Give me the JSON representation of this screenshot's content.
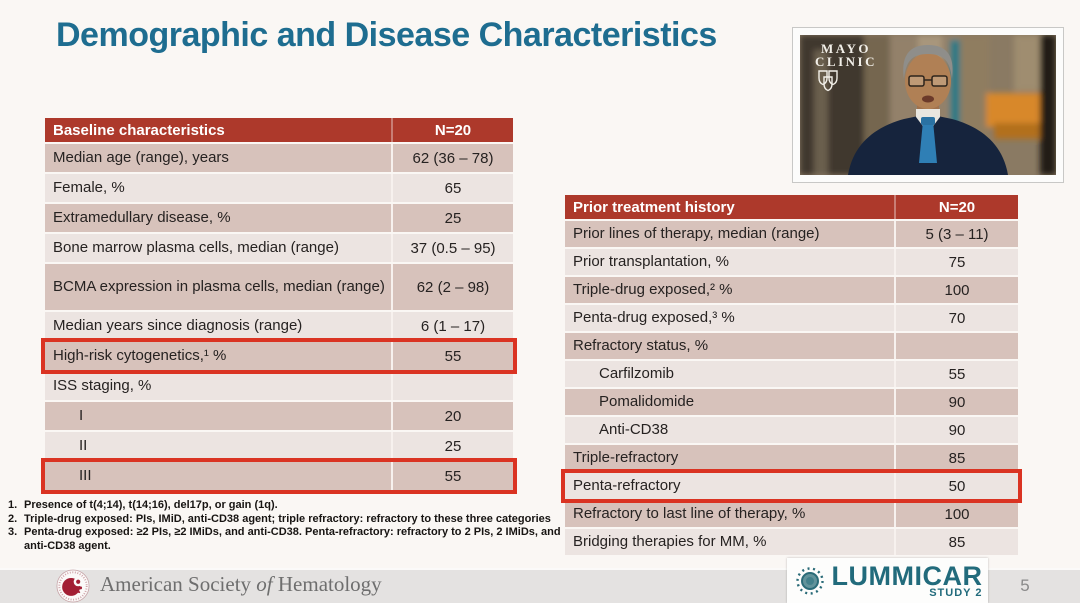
{
  "title": "Demographic and Disease Characteristics",
  "video": {
    "clinic_line1": "MAYO",
    "clinic_line2": "CLINIC"
  },
  "baseline_table": {
    "header": {
      "label": "Baseline characteristics",
      "value": "N=20"
    },
    "rows": [
      {
        "label": "Median age (range), years",
        "value": "62 (36 – 78)",
        "shade": "dark"
      },
      {
        "label": "Female, %",
        "value": "65",
        "shade": "light"
      },
      {
        "label": "Extramedullary disease, %",
        "value": "25",
        "shade": "dark"
      },
      {
        "label": "Bone marrow plasma cells, median (range)",
        "value": "37 (0.5 – 95)",
        "shade": "light"
      },
      {
        "label": "BCMA expression in plasma cells, median (range)",
        "value": "62 (2 – 98)",
        "shade": "dark",
        "tall": true
      },
      {
        "label": "Median years since diagnosis (range)",
        "value": "6 (1 – 17)",
        "shade": "light"
      },
      {
        "label": "High-risk cytogenetics,¹ %",
        "value": "55",
        "shade": "dark",
        "highlight": true
      },
      {
        "label": "ISS staging, %",
        "value": "",
        "shade": "light"
      },
      {
        "label": "I",
        "value": "20",
        "shade": "dark",
        "indent": true
      },
      {
        "label": "II",
        "value": "25",
        "shade": "light",
        "indent": true
      },
      {
        "label": "III",
        "value": "55",
        "shade": "dark",
        "indent": true,
        "highlight": true
      }
    ]
  },
  "treatment_table": {
    "header": {
      "label": "Prior treatment history",
      "value": "N=20"
    },
    "rows": [
      {
        "label": "Prior lines of therapy, median (range)",
        "value": "5 (3 – 11)",
        "shade": "dark"
      },
      {
        "label": "Prior transplantation, %",
        "value": "75",
        "shade": "light"
      },
      {
        "label": "Triple-drug exposed,² %",
        "value": "100",
        "shade": "dark"
      },
      {
        "label": "Penta-drug exposed,³ %",
        "value": "70",
        "shade": "light"
      },
      {
        "label": "Refractory status, %",
        "value": "",
        "shade": "dark"
      },
      {
        "label": "Carfilzomib",
        "value": "55",
        "shade": "light",
        "indent": true
      },
      {
        "label": "Pomalidomide",
        "value": "90",
        "shade": "dark",
        "indent": true
      },
      {
        "label": "Anti-CD38",
        "value": "90",
        "shade": "light",
        "indent": true
      },
      {
        "label": "Triple-refractory",
        "value": "85",
        "shade": "dark"
      },
      {
        "label": "Penta-refractory",
        "value": "50",
        "shade": "light",
        "highlight": true
      },
      {
        "label": "Refractory to last line of therapy, %",
        "value": "100",
        "shade": "dark"
      },
      {
        "label": "Bridging therapies for MM, %",
        "value": "85",
        "shade": "light"
      }
    ]
  },
  "footnotes": [
    {
      "num": "1.",
      "text": "Presence of t(4;14), t(14;16), del17p, or gain (1q)."
    },
    {
      "num": "2.",
      "text": "Triple-drug exposed: PIs, IMiD, anti-CD38 agent; triple refractory: refractory to these three categories"
    },
    {
      "num": "3.",
      "text": "Penta-drug exposed: ≥2 PIs, ≥2 IMiDs, and anti-CD38. Penta-refractory: refractory to 2 PIs, 2 IMiDs, and anti-CD38 agent."
    }
  ],
  "footer": {
    "society_pre": "American Society ",
    "society_of": "of",
    "society_post": " Hematology",
    "brand": "LUMMICAR",
    "brand_sub": "STUDY 2",
    "page": "5"
  },
  "colors": {
    "title_teal": "#1e6d90",
    "header_red": "#ad392b",
    "highlight_red": "#da3322",
    "row_dark": "#d7c2bb",
    "row_light": "#ece4e1",
    "brand_teal": "#226b7c"
  }
}
